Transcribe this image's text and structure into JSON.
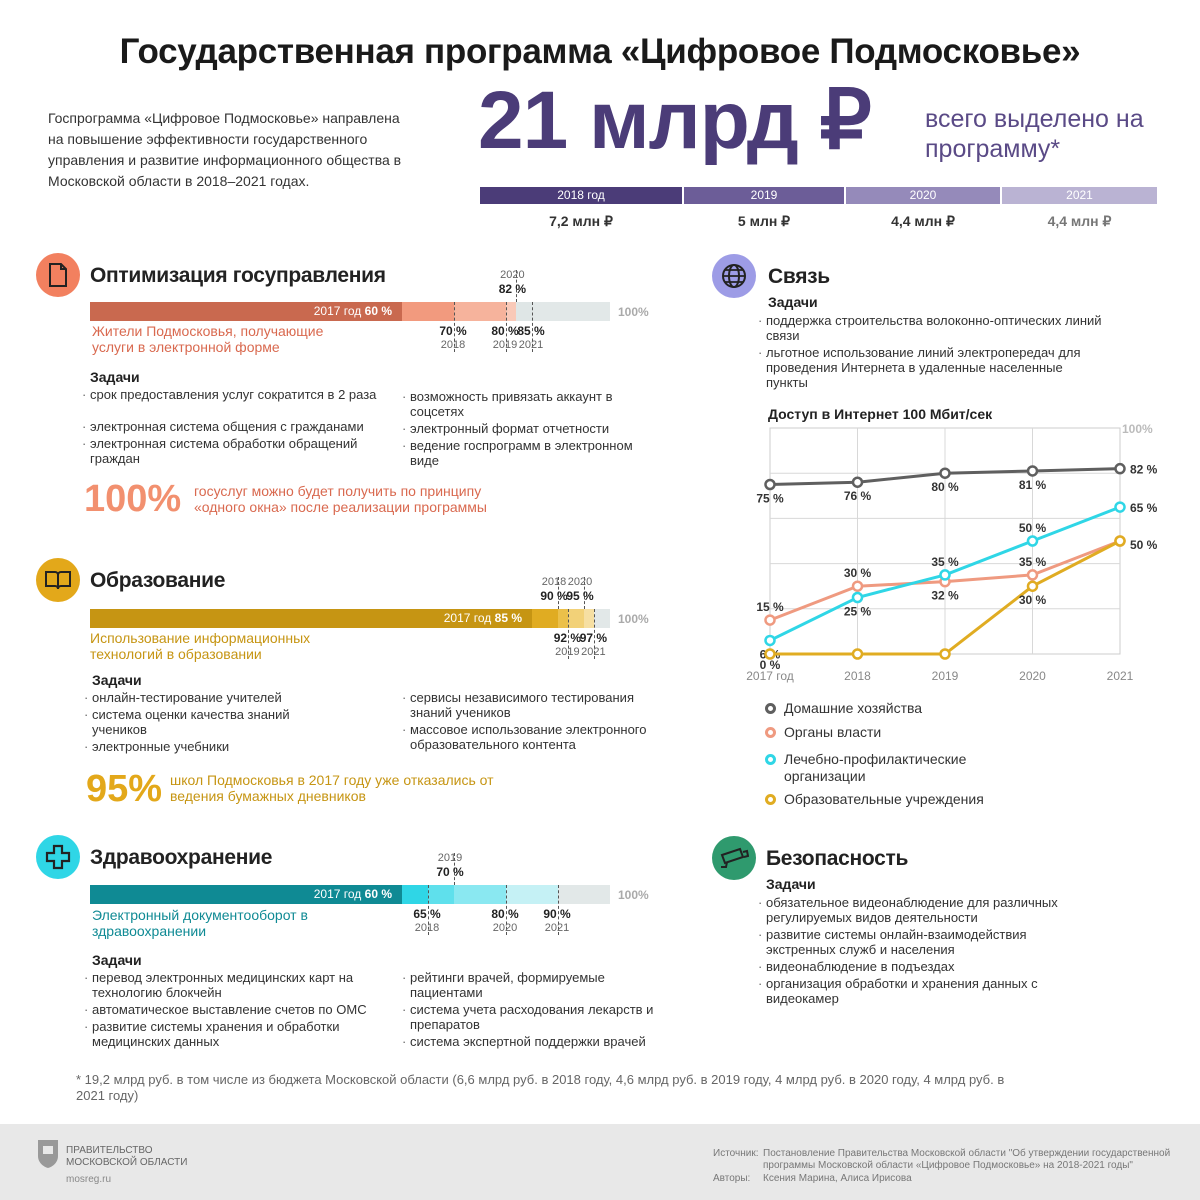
{
  "title": "Государственная программа «Цифровое Подмосковье»",
  "intro": "Госпрограмма «Цифровое Подмосковье» направлена на повышение эффективности государственного управления и развитие информационного общества в Московской области в 2018–2021 годах.",
  "budget": {
    "total": "21 млрд ₽",
    "subtitle": "всего выделено на программу*",
    "years": [
      {
        "year": "2018 год",
        "value": "7,2 млн ₽",
        "color": "#4b3c78"
      },
      {
        "year": "2019",
        "value": "5 млн ₽",
        "color": "#6c5d98"
      },
      {
        "year": "2020",
        "value": "4,4 млн ₽",
        "color": "#958aba"
      },
      {
        "year": "2021",
        "value": "4,4 млн ₽",
        "color": "#bab3d3"
      }
    ]
  },
  "sections": {
    "gov": {
      "title": "Оптимизация госуправления",
      "icon": "document-icon",
      "color": "#e8806a",
      "bar_label": "Жители Подмосковья, получающие услуги в электронной форме",
      "bar_start": "2017 год",
      "bar_start_pct": "60 %",
      "points": [
        {
          "year": "2018",
          "pct": "70 %"
        },
        {
          "year": "2019",
          "pct": "80 %"
        },
        {
          "year": "2020",
          "pct": "82 %"
        },
        {
          "year": "2021",
          "pct": "85 %"
        }
      ],
      "hundred": "100%",
      "tasks_title": "Задачи",
      "tasks_left": [
        "срок предоставления услуг сократится в 2 раза",
        "электронная система общения с гражданами",
        "электронная система обработки обращений граждан"
      ],
      "tasks_right": [
        "возможность привязать аккаунт в соцсетях",
        "электронный формат отчетности",
        "ведение госпрограмм в электронном виде"
      ],
      "big_pct": "100%",
      "big_text": "госуслуг можно будет получить по принципу «одного окна» после реализации программы"
    },
    "edu": {
      "title": "Образование",
      "icon": "book-icon",
      "color": "#d4a017",
      "bar_label": "Использование информационных технологий в образовании",
      "bar_start": "2017 год",
      "bar_start_pct": "85 %",
      "points": [
        {
          "year": "2018",
          "pct": "90 %"
        },
        {
          "year": "2019",
          "pct": "92 %"
        },
        {
          "year": "2020",
          "pct": "95 %"
        },
        {
          "year": "2021",
          "pct": "97 %"
        }
      ],
      "hundred": "100%",
      "tasks_title": "Задачи",
      "tasks_left": [
        "онлайн-тестирование учителей",
        "система оценки качества знаний учеников",
        "электронные учебники"
      ],
      "tasks_right": [
        "сервисы независимого тестирования знаний учеников",
        "массовое использование электронного образовательного контента"
      ],
      "big_pct": "95%",
      "big_text": "школ Подмосковья в 2017 году уже отказались от ведения бумажных дневников"
    },
    "health": {
      "title": "Здравоохранение",
      "icon": "medical-cross-icon",
      "color": "#1aa7b0",
      "bar_label": "Электронный документооборот в здравоохранении",
      "bar_start": "2017 год",
      "bar_start_pct": "60 %",
      "points": [
        {
          "year": "2018",
          "pct": "65 %"
        },
        {
          "year": "2019",
          "pct": "70 %"
        },
        {
          "year": "2020",
          "pct": "80 %"
        },
        {
          "year": "2021",
          "pct": "90 %"
        }
      ],
      "hundred": "100%",
      "tasks_title": "Задачи",
      "tasks_left": [
        "перевод электронных медицинских карт на технологию блокчейн",
        "автоматическое выставление счетов по ОМС",
        "развитие системы хранения и обработки медицинских данных"
      ],
      "tasks_right": [
        "рейтинги врачей, формируемые пациентами",
        "система учета расходования лекарств и препаратов",
        "система экспертной поддержки врачей"
      ]
    },
    "comm": {
      "title": "Связь",
      "icon": "globe-icon",
      "tasks_title": "Задачи",
      "tasks": [
        "поддержка строительства волоконно-оптических линий связи",
        "льготное использование линий электропередач для проведения Интернета в удаленные населенные пункты"
      ],
      "chart_title": "Доступ в Интернет 100 Мбит/сек"
    },
    "security": {
      "title": "Безопасность",
      "icon": "cctv-camera-icon",
      "tasks_title": "Задачи",
      "tasks": [
        "обязательное видеонаблюдение для различных регулируемых видов деятельности",
        "развитие системы онлайн-взаимодействия экстренных служб и населения",
        "видеонаблюдение в подъездах",
        "организация обработки и хранения данных с видеокамер"
      ]
    }
  },
  "chart_data": {
    "type": "line",
    "title": "Доступ в Интернет 100 Мбит/сек",
    "x": [
      "2017 год",
      "2018",
      "2019",
      "2020",
      "2021"
    ],
    "ylim": [
      0,
      100
    ],
    "top_label": "100%",
    "series": [
      {
        "name": "Домашние хозяйства",
        "color": "#5f5f5f",
        "values": [
          75,
          76,
          80,
          81,
          82
        ],
        "labels": [
          "75 %",
          "76 %",
          "80 %",
          "81 %",
          "82 %"
        ]
      },
      {
        "name": "Органы власти",
        "color": "#ef9a80",
        "values": [
          15,
          30,
          32,
          35,
          50
        ],
        "labels": [
          "15 %",
          "30 %",
          "32 %",
          "35 %",
          ""
        ]
      },
      {
        "name": "Лечебно-профилактические организации",
        "color": "#2fd6e6",
        "values": [
          6,
          25,
          35,
          50,
          65
        ],
        "labels": [
          "6 %",
          "25 %",
          "35 %",
          "50 %",
          "65 %"
        ]
      },
      {
        "name": "Образовательные учреждения",
        "color": "#e0ac22",
        "values": [
          0,
          0,
          0,
          30,
          50
        ],
        "labels": [
          "0 %",
          "",
          "",
          "30 %",
          "50 %"
        ]
      }
    ]
  },
  "footnote": "* 19,2 млрд руб. в том числе из бюджета Московской области (6,6 млрд руб. в 2018 году, 4,6 млрд руб. в 2019 году, 4 млрд руб. в 2020 году, 4 млрд руб. в 2021 году)",
  "footer": {
    "org_line1": "ПРАВИТЕЛЬСТВО",
    "org_line2": "МОСКОВСКОЙ ОБЛАСТИ",
    "site": "mosreg.ru",
    "source_label": "Источник:",
    "source_text": "Постановление Правительства Московской области \"Об утверждении государственной программы Московской области «Цифровое Подмосковье» на 2018-2021 годы\"",
    "authors_label": "Авторы:",
    "authors_text": "Ксения Марина, Алиса Ирисова"
  }
}
